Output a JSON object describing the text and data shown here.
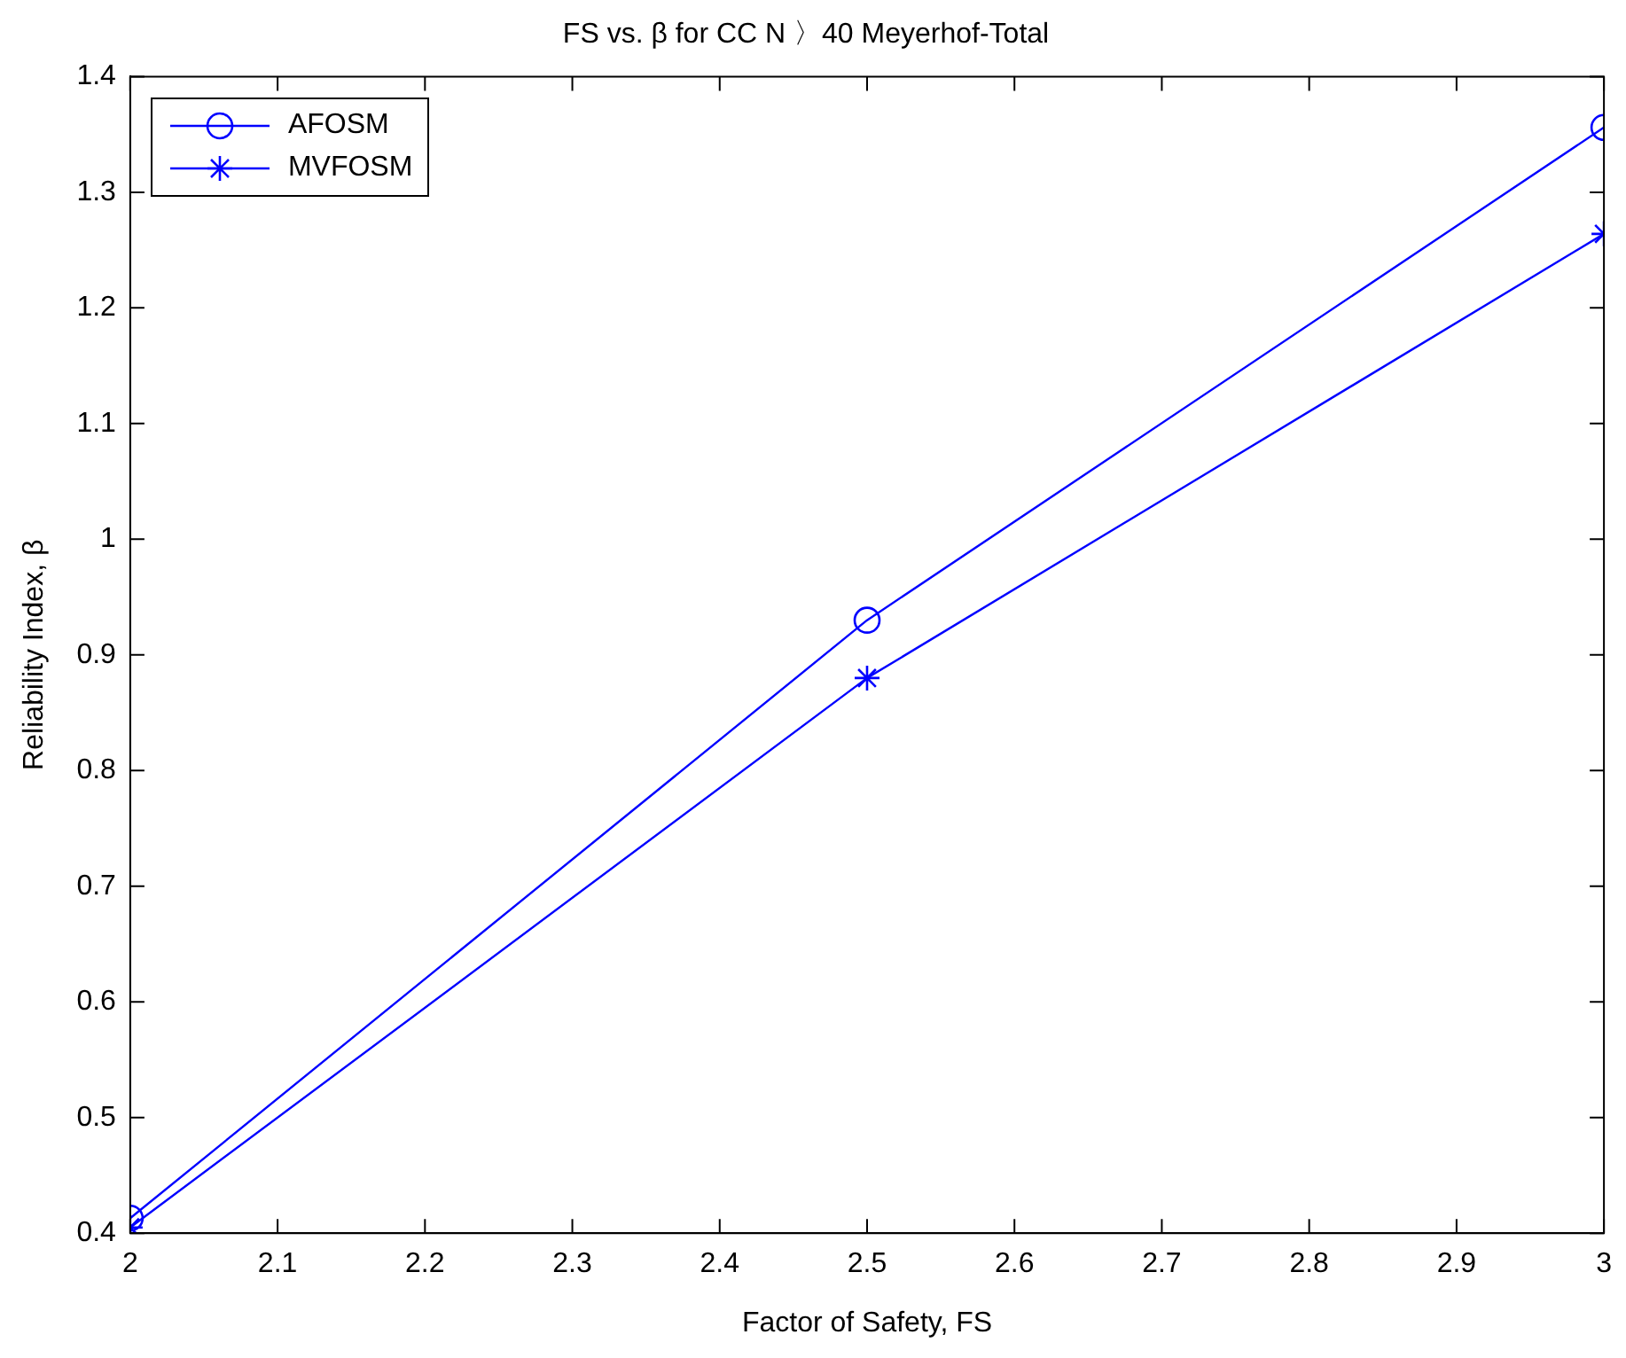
{
  "chart_data": {
    "type": "line",
    "title": "FS vs. β for CC N 〉40 Meyerhof-Total",
    "xlabel": "Factor of Safety, FS",
    "ylabel": "Reliability Index, β",
    "x": [
      2,
      2.5,
      3
    ],
    "series": [
      {
        "name": "AFOSM",
        "color": "#0000ff",
        "marker": "circle",
        "values": [
          0.413,
          0.93,
          1.356
        ]
      },
      {
        "name": "MVFOSM",
        "color": "#0000ff",
        "marker": "cross",
        "values": [
          0.405,
          0.88,
          1.264
        ]
      }
    ],
    "xlim": [
      2,
      3
    ],
    "xticks": [
      2,
      2.1,
      2.2,
      2.3,
      2.4,
      2.5,
      2.6,
      2.7,
      2.8,
      2.9,
      3
    ],
    "ylim": [
      0.4,
      1.4
    ],
    "yticks": [
      0.4,
      0.5,
      0.6,
      0.7,
      0.8,
      0.9,
      1,
      1.1,
      1.2,
      1.3,
      1.4
    ],
    "grid": false,
    "legend": "top left",
    "line_style": "solid"
  }
}
